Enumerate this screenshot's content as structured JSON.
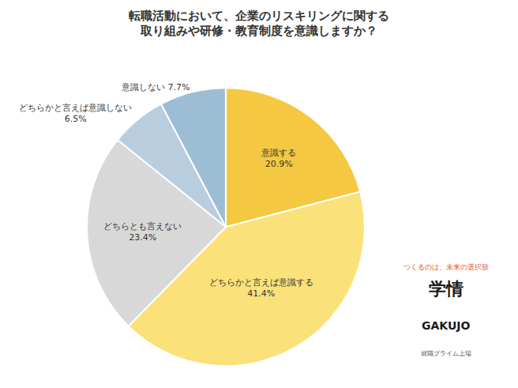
{
  "chart_data": {
    "type": "pie",
    "title": "転職活動において、企業のリスキリングに関する\n取り組みや研修・教育制度を意識しますか？",
    "categories": [
      "意識する\n20.9%",
      "どちらかと言えば意識する\n41.4%",
      "どちらとも言えない\n23.4%",
      "どちらかと言えば意識しない\n6.5%",
      "意識しない 7.7%"
    ],
    "values": [
      20.9,
      41.4,
      23.4,
      6.5,
      7.7
    ],
    "colors": [
      "#F5C842",
      "#FAE17A",
      "#D8D8D8",
      "#B8CEDF",
      "#9DBDD4"
    ],
    "data_labels": true,
    "annotations": [
      "つくるのは、未来の選択肢",
      "学情",
      "GAKUJO",
      "就職プライム上場"
    ]
  }
}
